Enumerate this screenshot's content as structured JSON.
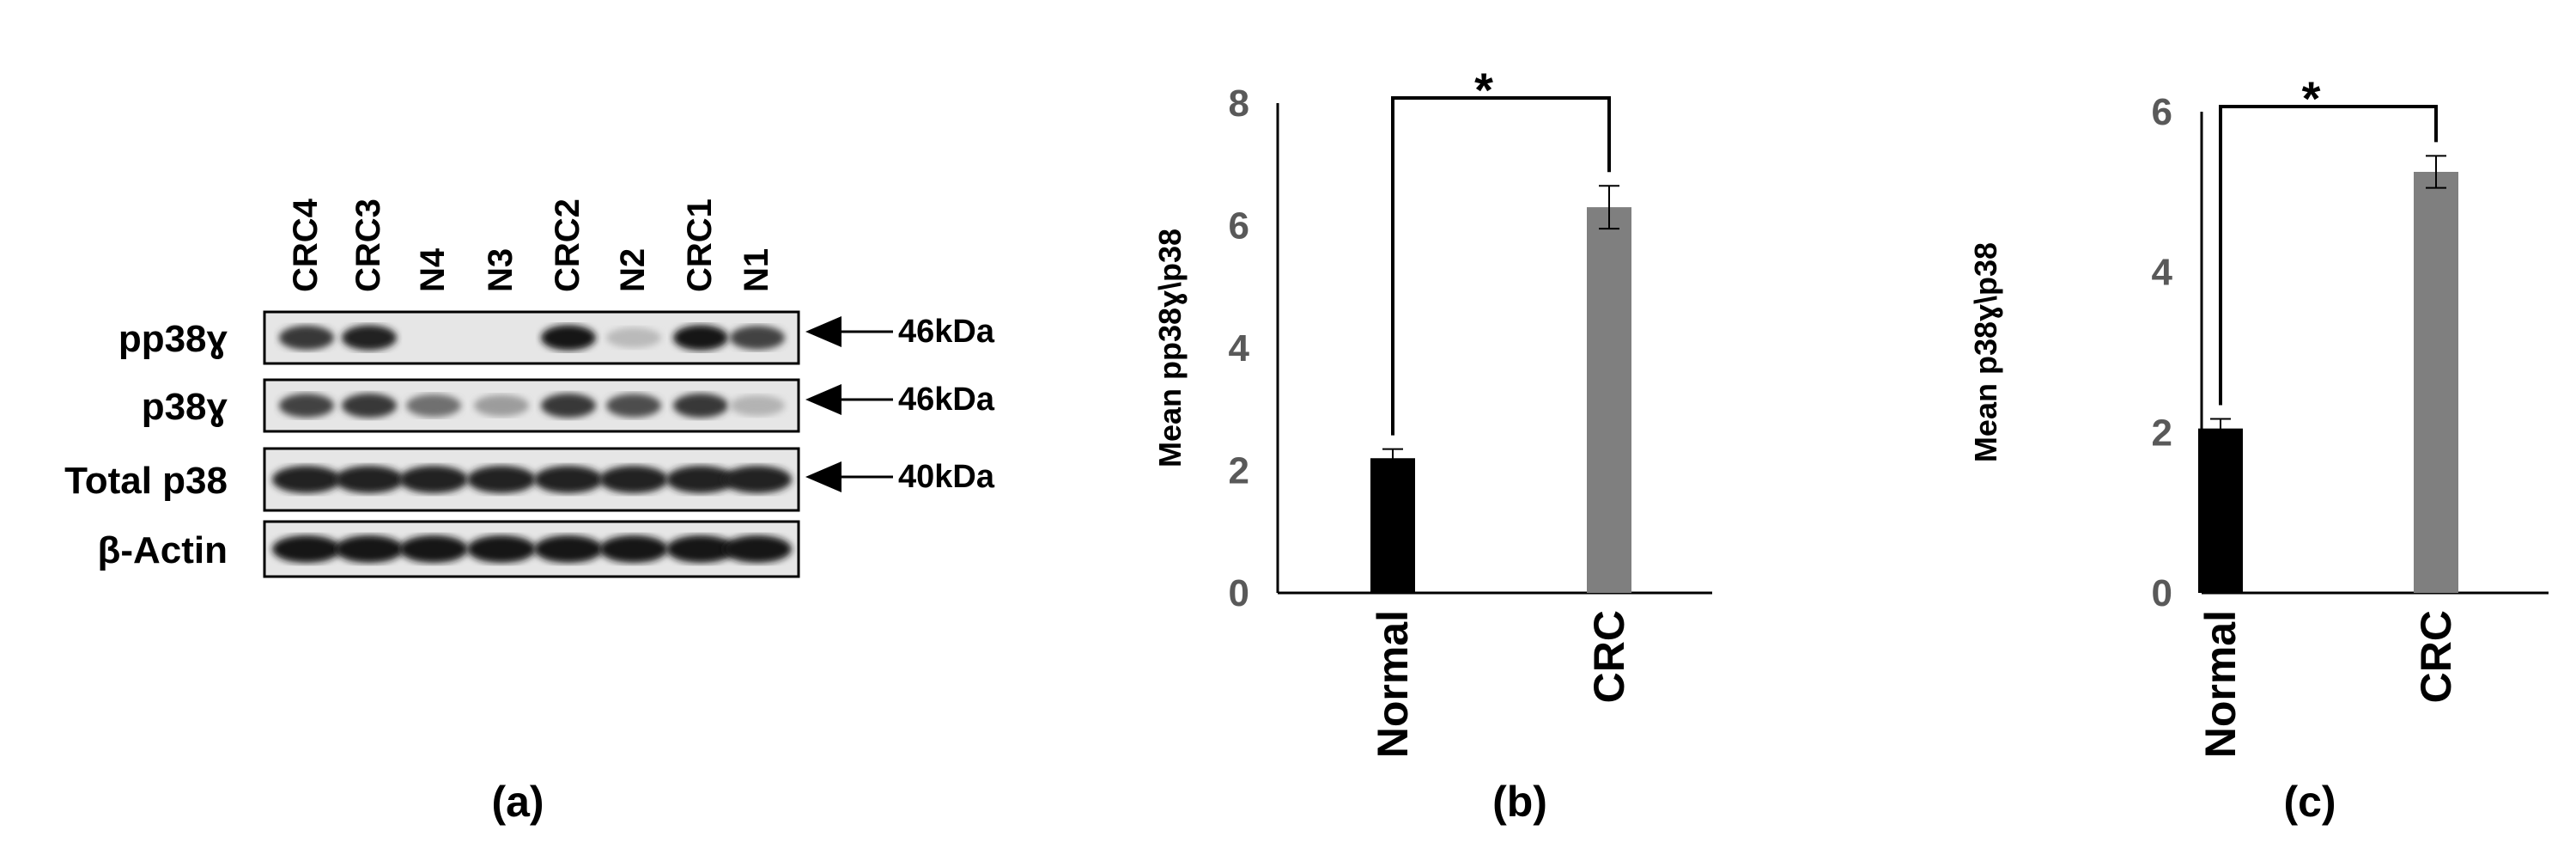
{
  "blot": {
    "lanes": [
      "CRC4",
      "CRC3",
      "N4",
      "N3",
      "CRC2",
      "N2",
      "CRC1",
      "N1"
    ],
    "rows": [
      {
        "label": "pp38ɣ",
        "size": "46kDa",
        "intensities": [
          0.8,
          0.9,
          0,
          0,
          0.95,
          0.22,
          0.95,
          0.75
        ]
      },
      {
        "label": "p38ɣ",
        "size": "46kDa",
        "intensities": [
          0.75,
          0.8,
          0.55,
          0.35,
          0.8,
          0.7,
          0.8,
          0.25
        ]
      },
      {
        "label": "Total p38",
        "size": "40kDa",
        "intensities": [
          0.9,
          0.9,
          0.9,
          0.9,
          0.9,
          0.9,
          0.9,
          0.9
        ]
      },
      {
        "label": "β-Actin",
        "size": "",
        "intensities": [
          0.95,
          0.95,
          0.95,
          0.95,
          0.95,
          0.95,
          0.95,
          0.95
        ]
      }
    ],
    "panel_label": "(a)"
  },
  "chart_data": [
    {
      "type": "bar",
      "panel_label": "(b)",
      "categories": [
        "Normal",
        "CRC"
      ],
      "values": [
        2.2,
        6.3
      ],
      "errors": [
        0.15,
        0.35
      ],
      "colors": [
        "#000000",
        "#7f7f7f"
      ],
      "ylabel": "Mean pp38ɣ\\p38",
      "ylim": [
        0,
        8
      ],
      "yticks": [
        "0",
        "2",
        "4",
        "6",
        "8"
      ],
      "significance": "*"
    },
    {
      "type": "bar",
      "panel_label": "(c)",
      "categories": [
        "Normal",
        "CRC"
      ],
      "values": [
        2.05,
        5.25
      ],
      "errors": [
        0.12,
        0.2
      ],
      "colors": [
        "#000000",
        "#7f7f7f"
      ],
      "ylabel": "Mean p38ɣ\\p38",
      "ylim": [
        0,
        6
      ],
      "yticks": [
        "0",
        "2",
        "4",
        "6"
      ],
      "significance": "*"
    }
  ]
}
